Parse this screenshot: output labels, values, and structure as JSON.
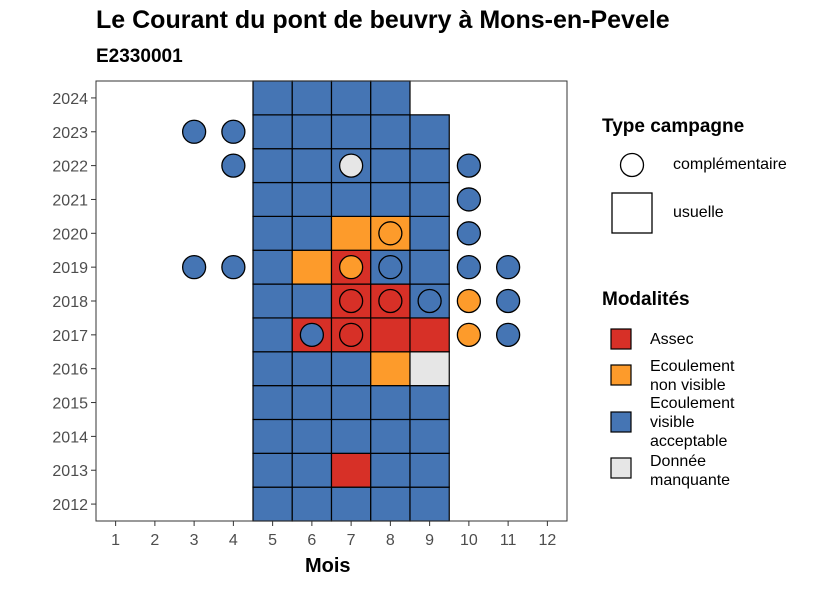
{
  "chart_data": {
    "type": "heatmap",
    "title": "Le Courant du pont de beuvry à Mons-en-Pevele",
    "subtitle": "E2330001",
    "xlabel": "Mois",
    "ylabel": "",
    "x_ticks": [
      "1",
      "2",
      "3",
      "4",
      "5",
      "6",
      "7",
      "8",
      "9",
      "10",
      "11",
      "12"
    ],
    "y_ticks": [
      "2012",
      "2013",
      "2014",
      "2015",
      "2016",
      "2017",
      "2018",
      "2019",
      "2020",
      "2021",
      "2022",
      "2023",
      "2024"
    ],
    "xlim": [
      0.5,
      12.5
    ],
    "ylim": [
      2011.5,
      2024.5
    ],
    "grid": false,
    "colors": {
      "Assec": "#d73027",
      "Ecoulement non visible": "#fd9b2b",
      "Ecoulement visible acceptable": "#4575b4",
      "Donnée manquante": "#e6e6e6"
    },
    "usuelle": [
      {
        "year": 2012,
        "months": {
          "5": "Ecoulement visible acceptable",
          "6": "Ecoulement visible acceptable",
          "7": "Ecoulement visible acceptable",
          "8": "Ecoulement visible acceptable",
          "9": "Ecoulement visible acceptable"
        }
      },
      {
        "year": 2013,
        "months": {
          "5": "Ecoulement visible acceptable",
          "6": "Ecoulement visible acceptable",
          "7": "Assec",
          "8": "Ecoulement visible acceptable",
          "9": "Ecoulement visible acceptable"
        }
      },
      {
        "year": 2014,
        "months": {
          "5": "Ecoulement visible acceptable",
          "6": "Ecoulement visible acceptable",
          "7": "Ecoulement visible acceptable",
          "8": "Ecoulement visible acceptable",
          "9": "Ecoulement visible acceptable"
        }
      },
      {
        "year": 2015,
        "months": {
          "5": "Ecoulement visible acceptable",
          "6": "Ecoulement visible acceptable",
          "7": "Ecoulement visible acceptable",
          "8": "Ecoulement visible acceptable",
          "9": "Ecoulement visible acceptable"
        }
      },
      {
        "year": 2016,
        "months": {
          "5": "Ecoulement visible acceptable",
          "6": "Ecoulement visible acceptable",
          "7": "Ecoulement visible acceptable",
          "8": "Ecoulement non visible",
          "9": "Donnée manquante"
        }
      },
      {
        "year": 2017,
        "months": {
          "5": "Ecoulement visible acceptable",
          "6": "Assec",
          "7": "Assec",
          "8": "Assec",
          "9": "Assec"
        }
      },
      {
        "year": 2018,
        "months": {
          "5": "Ecoulement visible acceptable",
          "6": "Ecoulement visible acceptable",
          "7": "Assec",
          "8": "Assec",
          "9": "Ecoulement visible acceptable"
        }
      },
      {
        "year": 2019,
        "months": {
          "5": "Ecoulement visible acceptable",
          "6": "Ecoulement non visible",
          "7": "Assec",
          "8": "Ecoulement visible acceptable",
          "9": "Ecoulement visible acceptable"
        }
      },
      {
        "year": 2020,
        "months": {
          "5": "Ecoulement visible acceptable",
          "6": "Ecoulement visible acceptable",
          "7": "Ecoulement non visible",
          "8": "Ecoulement non visible",
          "9": "Ecoulement visible acceptable"
        }
      },
      {
        "year": 2021,
        "months": {
          "5": "Ecoulement visible acceptable",
          "6": "Ecoulement visible acceptable",
          "7": "Ecoulement visible acceptable",
          "8": "Ecoulement visible acceptable",
          "9": "Ecoulement visible acceptable"
        }
      },
      {
        "year": 2022,
        "months": {
          "5": "Ecoulement visible acceptable",
          "6": "Ecoulement visible acceptable",
          "7": "Ecoulement visible acceptable",
          "8": "Ecoulement visible acceptable",
          "9": "Ecoulement visible acceptable"
        }
      },
      {
        "year": 2023,
        "months": {
          "5": "Ecoulement visible acceptable",
          "6": "Ecoulement visible acceptable",
          "7": "Ecoulement visible acceptable",
          "8": "Ecoulement visible acceptable",
          "9": "Ecoulement visible acceptable"
        }
      },
      {
        "year": 2024,
        "months": {
          "5": "Ecoulement visible acceptable",
          "6": "Ecoulement visible acceptable",
          "7": "Ecoulement visible acceptable",
          "8": "Ecoulement visible acceptable"
        }
      }
    ],
    "complementaire": [
      {
        "year": 2023,
        "month": 3,
        "modalite": "Ecoulement visible acceptable"
      },
      {
        "year": 2023,
        "month": 4,
        "modalite": "Ecoulement visible acceptable"
      },
      {
        "year": 2022,
        "month": 4,
        "modalite": "Ecoulement visible acceptable"
      },
      {
        "year": 2022,
        "month": 7,
        "modalite": "Donnée manquante"
      },
      {
        "year": 2022,
        "month": 10,
        "modalite": "Ecoulement visible acceptable"
      },
      {
        "year": 2021,
        "month": 10,
        "modalite": "Ecoulement visible acceptable"
      },
      {
        "year": 2020,
        "month": 8,
        "modalite": "Ecoulement non visible"
      },
      {
        "year": 2020,
        "month": 10,
        "modalite": "Ecoulement visible acceptable"
      },
      {
        "year": 2019,
        "month": 3,
        "modalite": "Ecoulement visible acceptable"
      },
      {
        "year": 2019,
        "month": 4,
        "modalite": "Ecoulement visible acceptable"
      },
      {
        "year": 2019,
        "month": 7,
        "modalite": "Ecoulement non visible"
      },
      {
        "year": 2019,
        "month": 8,
        "modalite": "Ecoulement visible acceptable"
      },
      {
        "year": 2019,
        "month": 10,
        "modalite": "Ecoulement visible acceptable"
      },
      {
        "year": 2019,
        "month": 11,
        "modalite": "Ecoulement visible acceptable"
      },
      {
        "year": 2018,
        "month": 7,
        "modalite": "Assec"
      },
      {
        "year": 2018,
        "month": 8,
        "modalite": "Assec"
      },
      {
        "year": 2018,
        "month": 9,
        "modalite": "Ecoulement visible acceptable"
      },
      {
        "year": 2018,
        "month": 10,
        "modalite": "Ecoulement non visible"
      },
      {
        "year": 2018,
        "month": 11,
        "modalite": "Ecoulement visible acceptable"
      },
      {
        "year": 2017,
        "month": 6,
        "modalite": "Ecoulement visible acceptable"
      },
      {
        "year": 2017,
        "month": 7,
        "modalite": "Assec"
      },
      {
        "year": 2017,
        "month": 10,
        "modalite": "Ecoulement non visible"
      },
      {
        "year": 2017,
        "month": 11,
        "modalite": "Ecoulement visible acceptable"
      }
    ],
    "legend_type": {
      "title": "Type campagne",
      "items": [
        "complémentaire",
        "usuelle"
      ]
    },
    "legend_modalites": {
      "title": "Modalités",
      "items": [
        {
          "key": "Assec",
          "label": "Assec"
        },
        {
          "key": "Ecoulement non visible",
          "label": "Ecoulement\nnon visible"
        },
        {
          "key": "Ecoulement visible acceptable",
          "label": "Ecoulement\nvisible\nacceptable"
        },
        {
          "key": "Donnée manquante",
          "label": "Donnée\nmanquante"
        }
      ]
    },
    "legend_placement": "right"
  }
}
